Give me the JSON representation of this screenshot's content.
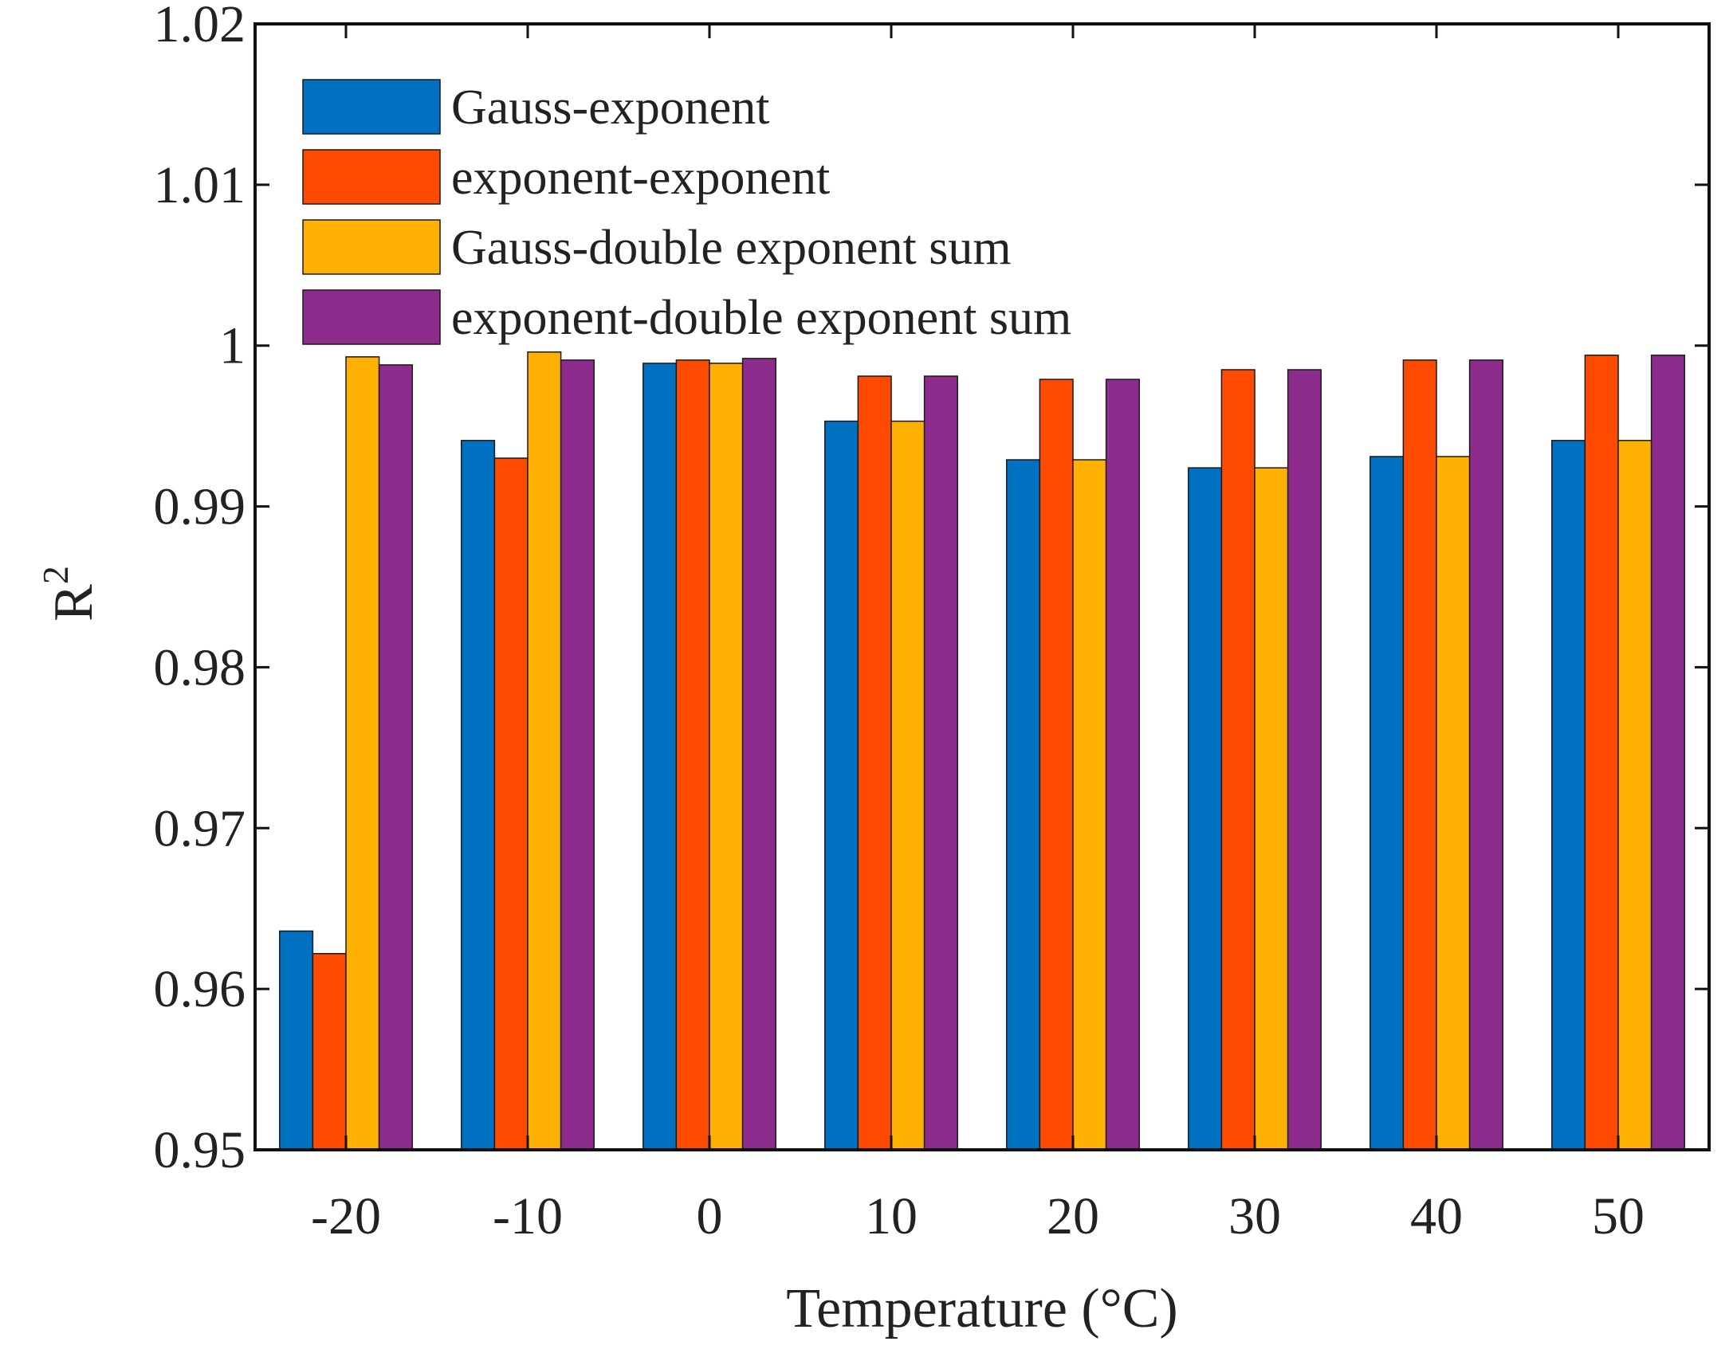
{
  "chart_data": {
    "type": "bar",
    "title": "",
    "xlabel": "Temperature (°C)",
    "ylabel": "R",
    "ylabel_superscript": "2",
    "ylim": [
      0.95,
      1.02
    ],
    "yticks": [
      0.95,
      0.96,
      0.97,
      0.98,
      0.99,
      1,
      1.01,
      1.02
    ],
    "ytick_labels": [
      "0.95",
      "0.96",
      "0.97",
      "0.98",
      "0.99",
      "1",
      "1.01",
      "1.02"
    ],
    "categories": [
      "-20",
      "-10",
      "0",
      "10",
      "20",
      "30",
      "40",
      "50"
    ],
    "legend_position": "top-left",
    "series": [
      {
        "name": "Gauss-exponent",
        "color": "#0070C0",
        "values": [
          0.9636,
          0.9941,
          0.9989,
          0.9953,
          0.9929,
          0.9924,
          0.9931,
          0.9941
        ]
      },
      {
        "name": "exponent-exponent",
        "color": "#FF4A00",
        "values": [
          0.9622,
          0.993,
          0.9991,
          0.9981,
          0.9979,
          0.9985,
          0.9991,
          0.9994
        ]
      },
      {
        "name": "Gauss-double exponent sum",
        "color": "#FFB000",
        "values": [
          0.9993,
          0.9996,
          0.9989,
          0.9953,
          0.9929,
          0.9924,
          0.9931,
          0.9941
        ]
      },
      {
        "name": "exponent-double exponent sum",
        "color": "#8E2C8E",
        "values": [
          0.9988,
          0.9991,
          0.9992,
          0.9981,
          0.9979,
          0.9985,
          0.9991,
          0.9994
        ]
      }
    ]
  }
}
